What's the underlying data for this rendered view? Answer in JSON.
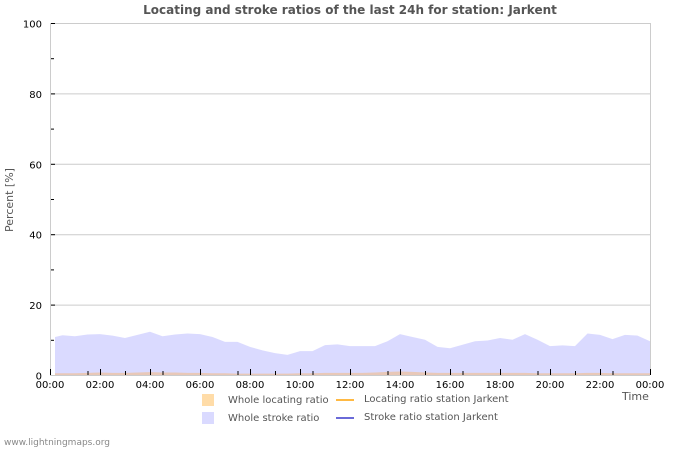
{
  "chart_data": {
    "type": "area",
    "title": "Locating and stroke ratios of the last 24h for station: Jarkent",
    "xlabel": "Time",
    "ylabel": "Percent   [%]",
    "ylim": [
      0,
      100
    ],
    "yticks": [
      0,
      20,
      40,
      60,
      80,
      100
    ],
    "xticks": [
      "00:00",
      "02:00",
      "04:00",
      "06:00",
      "08:00",
      "10:00",
      "12:00",
      "14:00",
      "16:00",
      "18:00",
      "20:00",
      "22:00",
      "00:00"
    ],
    "grid": true,
    "legend_position": "bottom",
    "x_hours": [
      0.2,
      0.5,
      1.0,
      1.5,
      2.0,
      2.5,
      3.0,
      3.5,
      4.0,
      4.5,
      5.0,
      5.5,
      6.0,
      6.5,
      7.0,
      7.5,
      8.0,
      8.5,
      9.0,
      9.5,
      10.0,
      10.5,
      11.0,
      11.5,
      12.0,
      12.5,
      13.0,
      13.5,
      14.0,
      14.5,
      15.0,
      15.5,
      16.0,
      16.5,
      17.0,
      17.5,
      18.0,
      18.5,
      19.0,
      19.5,
      20.0,
      20.5,
      21.0,
      21.5,
      22.0,
      22.5,
      23.0,
      23.5,
      24.0
    ],
    "series": [
      {
        "name": "Whole locating ratio",
        "style": "area",
        "color": "#ffdca8",
        "values": [
          0.5,
          0.5,
          0.5,
          0.6,
          0.7,
          0.6,
          0.6,
          0.7,
          0.8,
          0.7,
          0.7,
          0.6,
          0.6,
          0.5,
          0.5,
          0.4,
          0.4,
          0.4,
          0.4,
          0.4,
          0.5,
          0.5,
          0.6,
          0.6,
          0.6,
          0.6,
          0.7,
          0.9,
          1.0,
          0.9,
          0.7,
          0.6,
          0.6,
          0.6,
          0.6,
          0.6,
          0.6,
          0.6,
          0.6,
          0.5,
          0.5,
          0.5,
          0.5,
          0.6,
          0.6,
          0.5,
          0.5,
          0.5,
          0.5
        ]
      },
      {
        "name": "Whole stroke ratio",
        "style": "area",
        "color": "#dadaff",
        "values": [
          10.8,
          11.3,
          11.0,
          11.5,
          11.6,
          11.2,
          10.5,
          11.4,
          12.3,
          11.0,
          11.5,
          11.8,
          11.6,
          10.8,
          9.4,
          9.4,
          8.0,
          7.0,
          6.2,
          5.7,
          6.8,
          6.8,
          8.5,
          8.7,
          8.2,
          8.2,
          8.2,
          9.6,
          11.6,
          10.8,
          10.0,
          8.0,
          7.6,
          8.6,
          9.6,
          9.8,
          10.5,
          10.0,
          11.6,
          10.0,
          8.2,
          8.4,
          8.2,
          11.8,
          11.4,
          10.2,
          11.4,
          11.2,
          9.6
        ]
      },
      {
        "name": "Locating ratio station Jarkent",
        "style": "line",
        "color": "#ffb943",
        "values": []
      },
      {
        "name": "Stroke ratio station Jarkent",
        "style": "line",
        "color": "#6a6ad8",
        "values": []
      }
    ]
  },
  "header": {
    "title": "Locating and stroke ratios of the last 24h for station: Jarkent"
  },
  "axes": {
    "ylabel": "Percent   [%]",
    "xlabel": "Time",
    "yticks": [
      "0",
      "20",
      "40",
      "60",
      "80",
      "100"
    ],
    "xticks": [
      "00:00",
      "02:00",
      "04:00",
      "06:00",
      "08:00",
      "10:00",
      "12:00",
      "14:00",
      "16:00",
      "18:00",
      "20:00",
      "22:00",
      "00:00"
    ]
  },
  "legend": {
    "items": [
      {
        "label": "Whole locating ratio",
        "color": "#ffdca8",
        "kind": "area"
      },
      {
        "label": "Locating ratio station Jarkent",
        "color": "#ffb943",
        "kind": "line"
      },
      {
        "label": "Whole stroke ratio",
        "color": "#dadaff",
        "kind": "area"
      },
      {
        "label": "Stroke ratio station Jarkent",
        "color": "#6a6ad8",
        "kind": "line"
      }
    ]
  },
  "footer": {
    "credit": "www.lightningmaps.org"
  }
}
